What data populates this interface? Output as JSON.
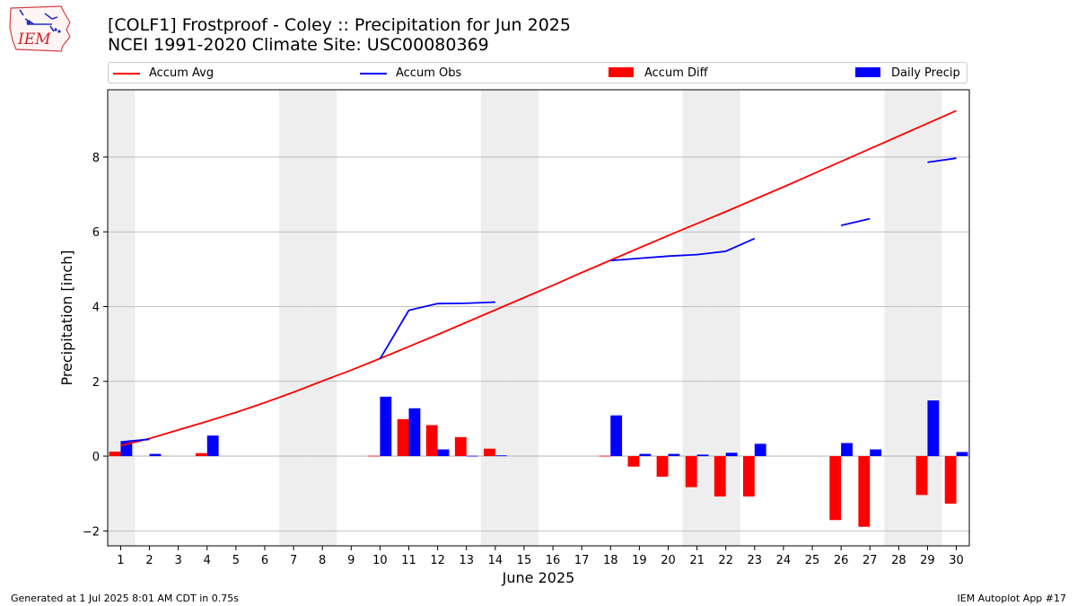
{
  "header": {
    "title_line1": "[COLF1] Frostproof - Coley :: Precipitation for Jun 2025",
    "title_line2": "NCEI 1991-2020 Climate Site: USC00080369"
  },
  "logo": {
    "text": "IEM",
    "icon": "iem-iowa-logo"
  },
  "footer": {
    "left": "Generated at 1 Jul 2025 8:01 AM CDT in 0.75s",
    "right": "IEM Autoplot App #17"
  },
  "colors": {
    "accum_avg": "#ff0000",
    "accum_obs": "#0000ff",
    "accum_diff": "#ff0000",
    "daily_precip": "#0000ff",
    "weekend_shade": "#eeeeee",
    "grid": "#b0b0b0"
  },
  "chart_data": {
    "type": "bar",
    "xlabel": "June 2025",
    "ylabel": "Precipitation [inch]",
    "ylim": [
      -2.4,
      9.8
    ],
    "yticks": [
      -2,
      0,
      2,
      4,
      6,
      8
    ],
    "grid": "horizontal",
    "legend_placement": "top",
    "x": [
      "1",
      "2",
      "3",
      "4",
      "5",
      "6",
      "7",
      "8",
      "9",
      "10",
      "11",
      "12",
      "13",
      "14",
      "15",
      "16",
      "17",
      "18",
      "19",
      "20",
      "21",
      "22",
      "23",
      "24",
      "25",
      "26",
      "27",
      "28",
      "29",
      "30"
    ],
    "weekend_days": [
      1,
      7,
      8,
      14,
      15,
      21,
      22,
      28,
      29
    ],
    "series": [
      {
        "name": "Accum Avg",
        "kind": "line",
        "values": [
          0.28,
          0.47,
          0.7,
          0.93,
          1.17,
          1.43,
          1.71,
          2.01,
          2.3,
          2.61,
          2.93,
          3.25,
          3.58,
          3.91,
          4.24,
          4.57,
          4.91,
          5.24,
          5.57,
          5.9,
          6.22,
          6.54,
          6.87,
          7.2,
          7.54,
          7.88,
          8.22,
          8.56,
          8.9,
          9.24
        ]
      },
      {
        "name": "Accum Obs",
        "kind": "line",
        "values": [
          0.38,
          0.45,
          null,
          null,
          null,
          null,
          null,
          null,
          null,
          2.6,
          3.9,
          4.08,
          4.09,
          4.12,
          null,
          null,
          null,
          5.23,
          5.29,
          5.35,
          5.39,
          5.48,
          5.82,
          null,
          null,
          6.17,
          6.35,
          null,
          7.86,
          7.97
        ]
      },
      {
        "name": "Accum Diff",
        "kind": "bar",
        "values": [
          0.12,
          null,
          null,
          0.08,
          null,
          null,
          null,
          null,
          null,
          0.01,
          0.99,
          0.83,
          0.51,
          0.2,
          null,
          null,
          null,
          0.01,
          -0.28,
          -0.55,
          -0.83,
          -1.08,
          -1.08,
          null,
          null,
          -1.71,
          -1.89,
          null,
          -1.04,
          -1.27
        ]
      },
      {
        "name": "Daily Precip",
        "kind": "bar",
        "values": [
          0.38,
          0.06,
          0,
          0.55,
          0,
          0,
          0,
          0,
          0,
          1.59,
          1.28,
          0.18,
          0.01,
          0.02,
          0,
          0,
          0,
          1.09,
          0.06,
          0.06,
          0.04,
          0.09,
          0.33,
          0,
          0,
          0.35,
          0.18,
          0,
          1.49,
          0.11
        ]
      }
    ]
  }
}
